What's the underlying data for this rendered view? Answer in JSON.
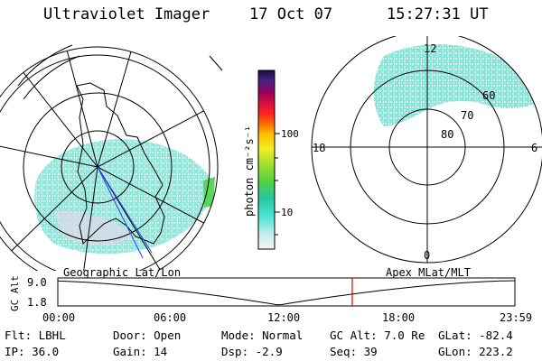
{
  "header": {
    "instrument": "Ultraviolet Imager",
    "date": "17 Oct 07",
    "time": "15:27:31 UT"
  },
  "colorbar": {
    "unit_label": "photon cm⁻²s⁻¹",
    "ticks": [
      "100",
      "10"
    ]
  },
  "mlt_plot": {
    "mlt_labels": [
      "12",
      "18",
      "6",
      "0"
    ],
    "lat_labels": [
      "60",
      "70",
      "80"
    ]
  },
  "timeline": {
    "left_label": "Geographic Lat/Lon",
    "right_label": "Apex MLat/MLT",
    "ylabel": "GC Alt",
    "yticks": [
      "9.0",
      "1.8"
    ],
    "xticks": [
      "00:00",
      "06:00",
      "12:00",
      "18:00",
      "23:59"
    ],
    "current_time_hours": 15.46
  },
  "info": {
    "filter": "Flt: LBHL",
    "ip": "IP: 36.0",
    "door": "Door: Open",
    "gain": "Gain: 14",
    "mode": "Mode: Normal",
    "dsp": "Dsp:    -2.9",
    "gc_alt": "GC Alt: 7.0 Re",
    "seq": "Seq: 39",
    "glat": "GLat: -82.4",
    "glon": "GLon: 223.2"
  }
}
